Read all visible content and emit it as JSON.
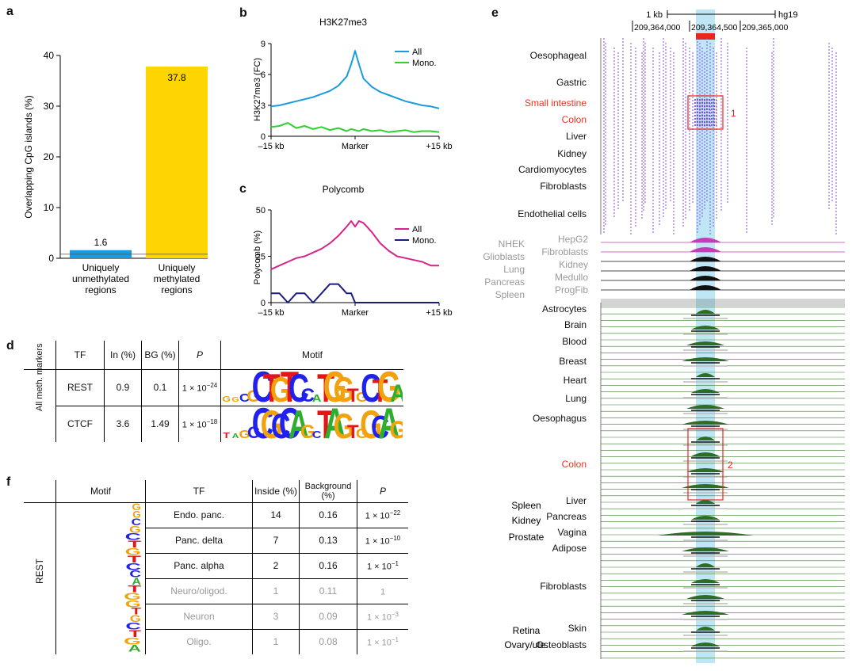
{
  "panels": {
    "a": "a",
    "b": "b",
    "c": "c",
    "d": "d",
    "e": "e",
    "f": "f"
  },
  "chart_data": [
    {
      "id": "a",
      "type": "bar",
      "categories": [
        "Uniquely unmethylated regions",
        "Uniquely methylated regions"
      ],
      "category_lines": [
        [
          "Uniquely",
          "unmethylated",
          "regions"
        ],
        [
          "Uniquely",
          "methylated",
          "regions"
        ]
      ],
      "values": [
        1.6,
        37.8
      ],
      "value_labels": [
        "1.6",
        "37.8"
      ],
      "colors": [
        "#1a9be0",
        "#ffd500"
      ],
      "ylabel": "Overlapping CpG islands (%)",
      "ylim": [
        0,
        40
      ],
      "yticks": [
        0,
        10,
        20,
        30,
        40
      ],
      "hline": 0.8
    },
    {
      "id": "b",
      "type": "line",
      "title": "H3K27me3",
      "ylabel": "H3K27me3 (FC)",
      "ylim": [
        0,
        9
      ],
      "yticks": [
        0,
        3,
        6,
        9
      ],
      "xticks": [
        "–15 kb",
        "Marker",
        "+15 kb"
      ],
      "x": [
        -15,
        -13.5,
        -12,
        -10.5,
        -9,
        -7.5,
        -6,
        -4.5,
        -3,
        -1.5,
        -0.7,
        0,
        0.7,
        1.5,
        3,
        4.5,
        6,
        7.5,
        9,
        10.5,
        12,
        13.5,
        15
      ],
      "series": [
        {
          "name": "All",
          "color": "#1a9be0",
          "values": [
            2.9,
            3.0,
            3.2,
            3.4,
            3.6,
            3.8,
            4.1,
            4.4,
            4.9,
            5.8,
            7.0,
            8.3,
            7.0,
            5.6,
            4.8,
            4.3,
            4.0,
            3.7,
            3.4,
            3.2,
            3.0,
            2.9,
            2.7
          ]
        },
        {
          "name": "Mono.",
          "color": "#2ed12e",
          "values": [
            0.9,
            1.0,
            1.3,
            0.8,
            1.0,
            0.7,
            0.9,
            0.6,
            0.8,
            0.5,
            0.7,
            0.6,
            0.5,
            0.7,
            0.5,
            0.6,
            0.4,
            0.5,
            0.6,
            0.4,
            0.5,
            0.5,
            0.4
          ]
        }
      ]
    },
    {
      "id": "c",
      "type": "line",
      "title": "Polycomb",
      "ylabel": "Polycomb (%)",
      "ylim": [
        0,
        50
      ],
      "yticks": [
        0,
        25,
        50
      ],
      "xticks": [
        "–15 kb",
        "Marker",
        "+15 kb"
      ],
      "x": [
        -15,
        -13.5,
        -12,
        -10.5,
        -9,
        -7.5,
        -6,
        -4.5,
        -3,
        -1.5,
        -0.7,
        0,
        0.7,
        1.5,
        3,
        4.5,
        6,
        7.5,
        9,
        10.5,
        12,
        13.5,
        15
      ],
      "series": [
        {
          "name": "All",
          "color": "#d6248a",
          "values": [
            18,
            20,
            22,
            24,
            25,
            27,
            29,
            32,
            36,
            41,
            44,
            41,
            44,
            43,
            38,
            32,
            28,
            25,
            24,
            23,
            22,
            20,
            20
          ]
        },
        {
          "name": "Mono.",
          "color": "#1c1c80",
          "values": [
            5,
            5,
            0,
            5,
            5,
            0,
            5,
            10,
            10,
            5,
            5,
            0,
            0,
            0,
            0,
            0,
            0,
            0,
            0,
            0,
            0,
            0,
            0
          ]
        }
      ]
    }
  ],
  "table_d": {
    "headers": [
      "TF",
      "In (%)",
      "BG (%)",
      "P",
      "Motif"
    ],
    "group": "All meth. markers",
    "rows": [
      {
        "tf": "REST",
        "in": "0.9",
        "bg": "0.1",
        "p_base": "1 × 10",
        "p_exp": "−24",
        "motif": "GGCGCTGTCCATGGTGCTGA"
      },
      {
        "tf": "CTCF",
        "in": "3.6",
        "bg": "1.49",
        "p_base": "1 × 10",
        "p_exp": "−18",
        "motif": "TAGCCGCCAGCTAGTGGCAG"
      }
    ]
  },
  "table_f": {
    "headers": [
      "Motif",
      "TF",
      "Inside (%)",
      "Background (%)",
      "P"
    ],
    "group": "REST",
    "motif": "GGCGCTGTCCATGGTGCTGA",
    "rows": [
      {
        "tf": "Endo. panc.",
        "in": "14",
        "bg": "0.16",
        "p_base": "1 × 10",
        "p_exp": "−22",
        "grey": false
      },
      {
        "tf": "Panc. delta",
        "in": "7",
        "bg": "0.13",
        "p_base": "1 × 10",
        "p_exp": "−10",
        "grey": false
      },
      {
        "tf": "Panc. alpha",
        "in": "2",
        "bg": "0.16",
        "p_base": "1 × 10",
        "p_exp": "−1",
        "grey": false
      },
      {
        "tf": "Neuro/oligod.",
        "in": "1",
        "bg": "0.11",
        "p_base": "1",
        "p_exp": "",
        "grey": true
      },
      {
        "tf": "Neuron",
        "in": "3",
        "bg": "0.09",
        "p_base": "1 × 10",
        "p_exp": "−3",
        "grey": true
      },
      {
        "tf": "Oligo.",
        "in": "1",
        "bg": "0.08",
        "p_base": "1 × 10",
        "p_exp": "−1",
        "grey": true
      }
    ]
  },
  "panel_e": {
    "scale_label": "1 kb",
    "genome": "hg19",
    "coords": [
      "209,364,000",
      "209,364,500",
      "209,365,000"
    ],
    "box1": "1",
    "box2": "2",
    "meth_tracks": [
      "Oesophageal",
      "Gastric",
      "Small intestine",
      "Colon",
      "Liver",
      "Kidney",
      "Cardiomyocytes",
      "Fibroblasts",
      "Endothelial cells"
    ],
    "meth_red": [
      false,
      false,
      true,
      true,
      false,
      false,
      false,
      false,
      false
    ],
    "grey_left": [
      "NHEK",
      "Glioblasts",
      "Lung",
      "Pancreas",
      "Spleen"
    ],
    "grey_right": [
      "HepG2",
      "Fibroblasts",
      "Kidney",
      "Medullo",
      "ProgFib"
    ],
    "tissues": [
      "Astrocytes",
      "Brain",
      "Blood",
      "Breast",
      "Heart",
      "Lung",
      "Oesophagus",
      "Colon",
      "Liver",
      "Pancreas",
      "Vagina",
      "Adipose",
      "Fibroblasts",
      "Skin",
      "Osteoblasts"
    ],
    "tissue_red": [
      false,
      false,
      false,
      false,
      false,
      false,
      false,
      true,
      false,
      false,
      false,
      false,
      false,
      false,
      false
    ],
    "left_col": [
      "Spleen",
      "Kidney",
      "Prostate",
      "Retina",
      "Ovary/ute."
    ]
  }
}
